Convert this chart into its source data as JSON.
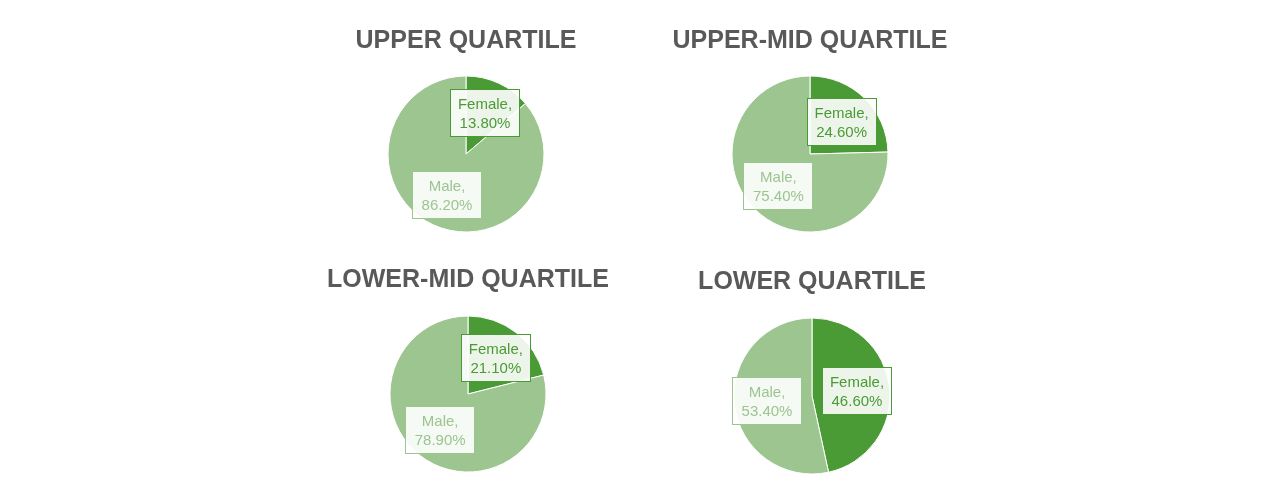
{
  "chart_data": [
    {
      "type": "pie",
      "title": "UPPER QUARTILE",
      "categories": [
        null,
        null
      ],
      "values": [
        13.8,
        86.2
      ],
      "colors": [
        "#4a9a35",
        "#9cc590"
      ],
      "value_labels": [
        "Female, 13.80%",
        "Male, 86.20%"
      ]
    },
    {
      "type": "pie",
      "title": "UPPER-MID QUARTILE",
      "categories": [
        null,
        null
      ],
      "values": [
        24.6,
        75.4
      ],
      "colors": [
        "#4a9a35",
        "#9cc590"
      ],
      "value_labels": [
        "Female, 24.60%",
        "Male, 75.40%"
      ]
    },
    {
      "type": "pie",
      "title": "LOWER-MID QUARTILE",
      "categories": [
        null,
        null
      ],
      "values": [
        21.1,
        78.9
      ],
      "colors": [
        "#4a9a35",
        "#9cc590"
      ],
      "value_labels": [
        "Female, 21.10%",
        "Male, 78.90%"
      ]
    },
    {
      "type": "pie",
      "title": "LOWER QUARTILE",
      "categories": [
        null,
        null
      ],
      "values": [
        46.6,
        53.4
      ],
      "colors": [
        "#4a9a35",
        "#9cc590"
      ],
      "value_labels": [
        "Female, 46.60%",
        "Male, 53.40%"
      ]
    }
  ]
}
